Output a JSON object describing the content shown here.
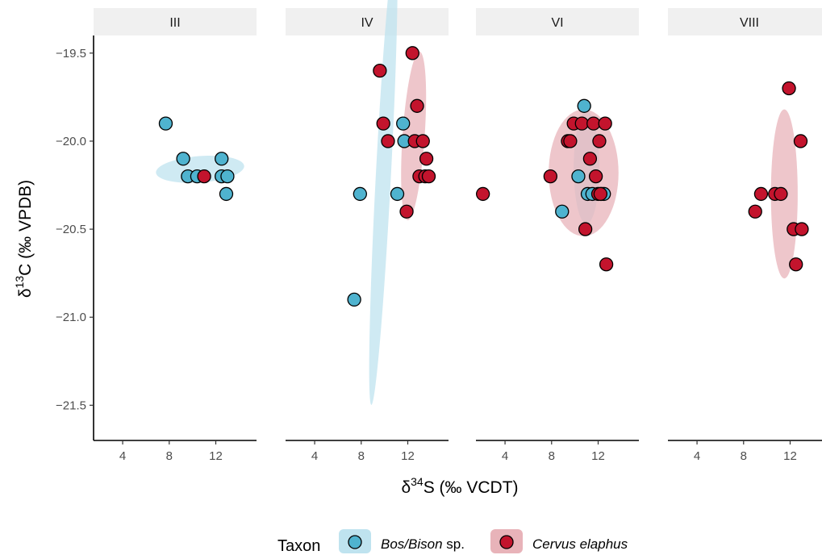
{
  "chart_data": {
    "type": "scatter",
    "facets": [
      "III",
      "IV",
      "VI",
      "VIII"
    ],
    "xlabel_main": "δ",
    "xlabel_sup": "34",
    "xlabel_rest": "S (‰ VCDT)",
    "ylabel_main": "δ",
    "ylabel_sup": "13",
    "ylabel_rest": "C (‰ VPDB)",
    "xlim": [
      1.5,
      15.5
    ],
    "ylim": [
      -21.7,
      -19.4
    ],
    "xticks": [
      4,
      8,
      12
    ],
    "xtick_labels": [
      "4",
      "8",
      "12"
    ],
    "yticks": [
      -19.5,
      -20.0,
      -20.5,
      -21.0,
      -21.5
    ],
    "ytick_labels": [
      "−19.5",
      "−20.0",
      "−20.5",
      "−21.0",
      "−21.5"
    ],
    "legend": {
      "title": "Taxon",
      "position": "bottom",
      "items": [
        {
          "key": "bos",
          "label_italic": "Bos/Bison",
          "label_rest": " sp."
        },
        {
          "key": "cervus",
          "label_italic": "Cervus elaphus",
          "label_rest": ""
        }
      ]
    },
    "colors": {
      "bos": "#4fb3cf",
      "bos_ellipse": "#bfe3ef",
      "cervus": "#c3142d",
      "cervus_ellipse": "#e8b3b9",
      "strip": "#f0f0f0",
      "axis": "#000000"
    },
    "series": [
      {
        "key": "bos",
        "points": [
          {
            "facet": "III",
            "x": 7.7,
            "y": -19.9
          },
          {
            "facet": "III",
            "x": 9.2,
            "y": -20.1
          },
          {
            "facet": "III",
            "x": 9.6,
            "y": -20.2
          },
          {
            "facet": "III",
            "x": 10.4,
            "y": -20.2
          },
          {
            "facet": "III",
            "x": 12.5,
            "y": -20.1
          },
          {
            "facet": "III",
            "x": 12.5,
            "y": -20.2
          },
          {
            "facet": "III",
            "x": 13.0,
            "y": -20.2
          },
          {
            "facet": "III",
            "x": 12.9,
            "y": -20.3
          },
          {
            "facet": "IV",
            "x": 7.9,
            "y": -20.3
          },
          {
            "facet": "IV",
            "x": 7.4,
            "y": -20.9
          },
          {
            "facet": "IV",
            "x": 11.1,
            "y": -20.3
          },
          {
            "facet": "IV",
            "x": 11.6,
            "y": -19.9
          },
          {
            "facet": "IV",
            "x": 11.7,
            "y": -20.0
          },
          {
            "facet": "VI",
            "x": 8.9,
            "y": -20.4
          },
          {
            "facet": "VI",
            "x": 10.3,
            "y": -20.2
          },
          {
            "facet": "VI",
            "x": 10.8,
            "y": -19.8
          },
          {
            "facet": "VI",
            "x": 11.1,
            "y": -20.3
          },
          {
            "facet": "VI",
            "x": 11.5,
            "y": -20.3
          },
          {
            "facet": "VI",
            "x": 12.3,
            "y": -20.3
          },
          {
            "facet": "VI",
            "x": 12.5,
            "y": -20.3
          }
        ],
        "ellipses": [
          {
            "facet": "III",
            "cx": 10.65,
            "cy": -20.16,
            "a": 3.8,
            "b": 0.075,
            "angle_deg": -4.4
          },
          {
            "facet": "IV",
            "cx": 9.9,
            "cy": -20.2,
            "a": 0.65,
            "b": 1.3,
            "angle_deg": 3.0
          },
          {
            "facet": "VI",
            "cx": 11.0,
            "cy": -20.15,
            "a": 1.1,
            "b": 0.32,
            "angle_deg": 0
          }
        ]
      },
      {
        "key": "cervus",
        "points": [
          {
            "facet": "III",
            "x": 11.0,
            "y": -20.2
          },
          {
            "facet": "IV",
            "x": 9.6,
            "y": -19.6
          },
          {
            "facet": "IV",
            "x": 9.9,
            "y": -19.9
          },
          {
            "facet": "IV",
            "x": 10.3,
            "y": -20.0
          },
          {
            "facet": "IV",
            "x": 11.9,
            "y": -20.4
          },
          {
            "facet": "IV",
            "x": 12.4,
            "y": -19.5
          },
          {
            "facet": "IV",
            "x": 12.6,
            "y": -20.0
          },
          {
            "facet": "IV",
            "x": 12.8,
            "y": -19.8
          },
          {
            "facet": "IV",
            "x": 13.0,
            "y": -20.2
          },
          {
            "facet": "IV",
            "x": 13.3,
            "y": -20.0
          },
          {
            "facet": "IV",
            "x": 13.6,
            "y": -20.1
          },
          {
            "facet": "IV",
            "x": 13.5,
            "y": -20.2
          },
          {
            "facet": "IV",
            "x": 13.8,
            "y": -20.2
          },
          {
            "facet": "VI",
            "x": 2.1,
            "y": -20.3
          },
          {
            "facet": "VI",
            "x": 7.9,
            "y": -20.2
          },
          {
            "facet": "VI",
            "x": 9.4,
            "y": -20.0
          },
          {
            "facet": "VI",
            "x": 9.6,
            "y": -20.0
          },
          {
            "facet": "VI",
            "x": 9.9,
            "y": -19.9
          },
          {
            "facet": "VI",
            "x": 10.6,
            "y": -19.9
          },
          {
            "facet": "VI",
            "x": 10.9,
            "y": -20.5
          },
          {
            "facet": "VI",
            "x": 11.3,
            "y": -20.1
          },
          {
            "facet": "VI",
            "x": 11.6,
            "y": -19.9
          },
          {
            "facet": "VI",
            "x": 11.8,
            "y": -20.2
          },
          {
            "facet": "VI",
            "x": 12.0,
            "y": -20.3
          },
          {
            "facet": "VI",
            "x": 12.1,
            "y": -20.0
          },
          {
            "facet": "VI",
            "x": 12.6,
            "y": -19.9
          },
          {
            "facet": "VI",
            "x": 12.2,
            "y": -20.3
          },
          {
            "facet": "VI",
            "x": 12.7,
            "y": -20.7
          },
          {
            "facet": "VIII",
            "x": 9.0,
            "y": -20.4
          },
          {
            "facet": "VIII",
            "x": 9.5,
            "y": -20.3
          },
          {
            "facet": "VIII",
            "x": 10.7,
            "y": -20.3
          },
          {
            "facet": "VIII",
            "x": 11.2,
            "y": -20.3
          },
          {
            "facet": "VIII",
            "x": 11.9,
            "y": -19.7
          },
          {
            "facet": "VIII",
            "x": 12.3,
            "y": -20.5
          },
          {
            "facet": "VIII",
            "x": 12.5,
            "y": -20.7
          },
          {
            "facet": "VIII",
            "x": 12.9,
            "y": -20.0
          },
          {
            "facet": "VIII",
            "x": 13.0,
            "y": -20.5
          }
        ],
        "ellipses": [
          {
            "facet": "IV",
            "cx": 12.5,
            "cy": -19.97,
            "a": 0.95,
            "b": 0.48,
            "angle_deg": 4.0
          },
          {
            "facet": "VI",
            "cx": 10.75,
            "cy": -20.18,
            "a": 3.0,
            "b": 0.36,
            "angle_deg": 0
          },
          {
            "facet": "VIII",
            "cx": 11.5,
            "cy": -20.3,
            "a": 1.15,
            "b": 0.48,
            "angle_deg": 0
          }
        ]
      }
    ]
  }
}
